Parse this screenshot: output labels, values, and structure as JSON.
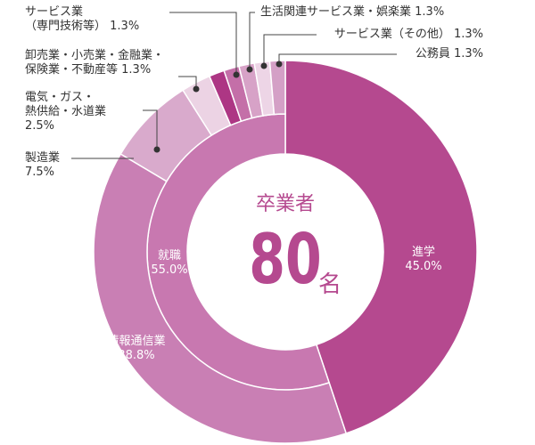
{
  "chart_data": {
    "type": "donut",
    "center_title": "卒業者",
    "center_value": 80,
    "center_unit": "名",
    "inner": {
      "categories": [
        "進学",
        "就職"
      ],
      "values": [
        45.0,
        55.0
      ],
      "value_labels": [
        "45.0%",
        "55.0%"
      ],
      "colors": [
        "#b5498f",
        "#c878b0"
      ]
    },
    "outer": {
      "categories": [
        "情報通信業",
        "製造業",
        "電気・ガス・\n熱供給・水道業",
        "卸売業・小売業・金融業・\n保険業・不動産等",
        "サービス業\n（専門技術等）",
        "生活関連サービス業・娯楽業",
        "サービス業（その他）",
        "公務員"
      ],
      "values": [
        38.8,
        7.5,
        2.5,
        1.3,
        1.3,
        1.3,
        1.3,
        1.3
      ],
      "value_labels": [
        "38.8%",
        "7.5%",
        "2.5%",
        "1.3%",
        "1.3%",
        "1.3%",
        "1.3%",
        "1.3%"
      ],
      "colors": [
        "#c97fb4",
        "#d9aacc",
        "#ecd3e4",
        "#ad3684",
        "#c46fa8",
        "#d7a2c7",
        "#edd5e6",
        "#d4a0c6"
      ]
    }
  }
}
